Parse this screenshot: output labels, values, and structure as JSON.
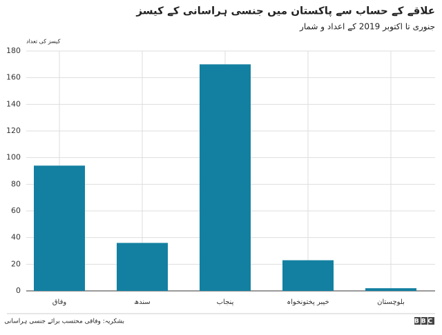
{
  "chart_data": {
    "type": "bar",
    "title": "علاقے کے حساب سے پاکستان میں جنسی ہراسانی کے کیسز",
    "subtitle": "جنوری تا اکتوبر 2019 کے اعداد و شمار",
    "y_label": "کیسز کی تعداد",
    "categories": [
      "وفاق",
      "سندھ",
      "پنجاب",
      "خیبر پختونخواہ",
      "بلوچستان"
    ],
    "values": [
      94,
      36,
      170,
      23,
      2
    ],
    "color": "#1380a1",
    "ylim": [
      0,
      180
    ],
    "yticks": [
      0,
      20,
      40,
      60,
      80,
      100,
      120,
      140,
      160,
      180
    ],
    "grid": true,
    "source": "بشکریہ: وفاقی محتسب برائے جنسی ہراسانی",
    "logo": "BBC"
  }
}
